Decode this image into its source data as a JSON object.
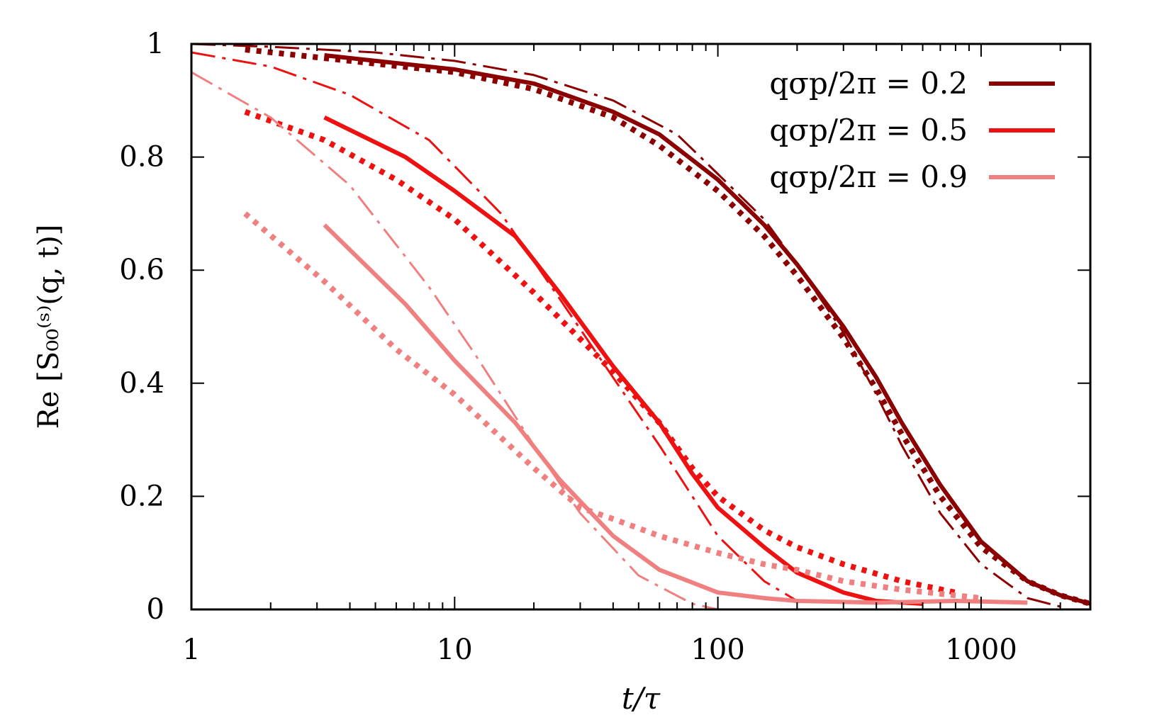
{
  "chart_data": {
    "type": "line",
    "xscale": "log",
    "xlim": [
      1,
      2600
    ],
    "ylim": [
      0,
      1
    ],
    "xlabel": "t/τ",
    "ylabel": "Re [S₀₀⁽ˢ⁾(q, t)]",
    "xticks": [
      "1",
      "10",
      "100",
      "1000"
    ],
    "yticks": [
      "0",
      "0.2",
      "0.4",
      "0.6",
      "0.8",
      "1"
    ],
    "legend_position": "top-right",
    "legend": [
      {
        "label": "qσp/2π = 0.2",
        "color": "#8b0000"
      },
      {
        "label": "qσp/2π = 0.5",
        "color": "#ee1111"
      },
      {
        "label": "qσp/2π = 0.9",
        "color": "#f08080"
      }
    ],
    "series": [
      {
        "name": "qσp/2π = 0.2",
        "style": "solid",
        "color": "#8b0000",
        "x": [
          3.2,
          5,
          10,
          20,
          40,
          60,
          100,
          150,
          200,
          300,
          400,
          500,
          700,
          1000,
          1500,
          2000,
          2600
        ],
        "y": [
          0.98,
          0.97,
          0.955,
          0.93,
          0.88,
          0.84,
          0.76,
          0.68,
          0.61,
          0.5,
          0.41,
          0.33,
          0.22,
          0.12,
          0.05,
          0.025,
          0.01
        ]
      },
      {
        "name": "qσp/2π = 0.2 dotted",
        "style": "dotted",
        "color": "#8b0000",
        "x": [
          1.6,
          3.2,
          5,
          10,
          20,
          40,
          60,
          100,
          150,
          200,
          300,
          400,
          500,
          700,
          1000,
          1500,
          2000,
          2600
        ],
        "y": [
          0.99,
          0.975,
          0.965,
          0.95,
          0.92,
          0.87,
          0.82,
          0.74,
          0.66,
          0.59,
          0.48,
          0.39,
          0.31,
          0.2,
          0.11,
          0.05,
          0.025,
          0.01
        ]
      },
      {
        "name": "qσp/2π = 0.2 dashdot",
        "style": "dashdot",
        "color": "#8b0000",
        "x": [
          1,
          2,
          5,
          10,
          20,
          40,
          70,
          100,
          150,
          200,
          300,
          400,
          500,
          700,
          1000,
          1500,
          2000
        ],
        "y": [
          1.0,
          0.995,
          0.985,
          0.97,
          0.945,
          0.9,
          0.84,
          0.77,
          0.69,
          0.61,
          0.49,
          0.38,
          0.29,
          0.17,
          0.08,
          0.02,
          0.005
        ]
      },
      {
        "name": "qσp/2π = 0.5",
        "style": "solid",
        "color": "#ee1111",
        "x": [
          3.2,
          6.5,
          10,
          17,
          25,
          40,
          60,
          80,
          100,
          150,
          200,
          300,
          400,
          600
        ],
        "y": [
          0.87,
          0.8,
          0.74,
          0.66,
          0.56,
          0.43,
          0.33,
          0.24,
          0.18,
          0.11,
          0.065,
          0.03,
          0.015,
          0.01
        ]
      },
      {
        "name": "qσp/2π = 0.5 dotted",
        "style": "dotted",
        "color": "#ee1111",
        "x": [
          1.6,
          3.2,
          6,
          10,
          20,
          40,
          60,
          80,
          100,
          150,
          200,
          300,
          500,
          800
        ],
        "y": [
          0.88,
          0.83,
          0.76,
          0.69,
          0.56,
          0.42,
          0.33,
          0.25,
          0.2,
          0.14,
          0.11,
          0.08,
          0.05,
          0.03
        ]
      },
      {
        "name": "qσp/2π = 0.5 dashdot",
        "style": "dashdot",
        "color": "#ee1111",
        "x": [
          1,
          2,
          4,
          8,
          15,
          25,
          40,
          60,
          80,
          100,
          150,
          200
        ],
        "y": [
          0.985,
          0.96,
          0.91,
          0.83,
          0.7,
          0.55,
          0.41,
          0.29,
          0.2,
          0.13,
          0.05,
          0.015
        ]
      },
      {
        "name": "qσp/2π = 0.9",
        "style": "solid",
        "color": "#f08080",
        "x": [
          3.2,
          6.5,
          10,
          17,
          25,
          40,
          60,
          100,
          150,
          200,
          400,
          800,
          1500
        ],
        "y": [
          0.68,
          0.54,
          0.44,
          0.33,
          0.23,
          0.13,
          0.07,
          0.03,
          0.02,
          0.015,
          0.012,
          0.015,
          0.012
        ]
      },
      {
        "name": "qσp/2π = 0.9 dotted",
        "style": "dotted",
        "color": "#f08080",
        "x": [
          1.6,
          3.2,
          6,
          10,
          20,
          30,
          40,
          60,
          100,
          150,
          200,
          300,
          500,
          1000
        ],
        "y": [
          0.7,
          0.58,
          0.46,
          0.38,
          0.25,
          0.18,
          0.16,
          0.13,
          0.1,
          0.08,
          0.07,
          0.05,
          0.035,
          0.02
        ]
      },
      {
        "name": "qσp/2π = 0.9 dashdot",
        "style": "dashdot",
        "color": "#f08080",
        "x": [
          1,
          2,
          4,
          8,
          12,
          20,
          30,
          50,
          80,
          100
        ],
        "y": [
          0.95,
          0.87,
          0.75,
          0.57,
          0.45,
          0.29,
          0.17,
          0.06,
          0.01,
          0.0
        ]
      }
    ]
  }
}
